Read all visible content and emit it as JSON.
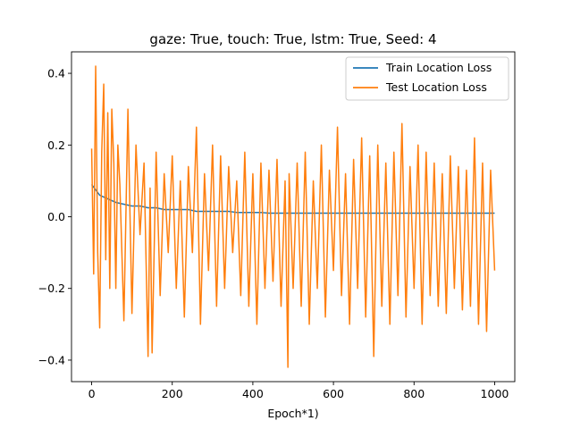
{
  "chart_data": {
    "type": "line",
    "title": "gaze: True, touch: True, lstm: True, Seed: 4",
    "xlabel": "Epoch*1)",
    "ylabel": "",
    "xlim": [
      -50,
      1050
    ],
    "ylim": [
      -0.46,
      0.46
    ],
    "xticks": [
      0,
      200,
      400,
      600,
      800,
      1000
    ],
    "yticks": [
      -0.4,
      -0.2,
      0.0,
      0.2,
      0.4
    ],
    "xtick_labels": [
      "0",
      "200",
      "400",
      "600",
      "800",
      "1000"
    ],
    "ytick_labels": [
      "−0.4",
      "−0.2",
      "0.0",
      "0.2",
      "0.4"
    ],
    "grid": false,
    "legend": {
      "placement": "upper-right",
      "entries": [
        {
          "label": "Train Location Loss",
          "color": "#1f77b4"
        },
        {
          "label": "Test Location Loss",
          "color": "#ff7f0e"
        }
      ]
    },
    "series": [
      {
        "name": "Train Location Loss",
        "color": "#1f77b4",
        "x": [
          0,
          20,
          40,
          60,
          80,
          100,
          120,
          140,
          160,
          180,
          200,
          220,
          240,
          260,
          280,
          300,
          320,
          340,
          360,
          380,
          400,
          420,
          440,
          460,
          480,
          500,
          520,
          540,
          560,
          580,
          600,
          620,
          640,
          660,
          680,
          700,
          720,
          740,
          760,
          780,
          800,
          820,
          840,
          860,
          880,
          900,
          920,
          940,
          960,
          980,
          1000
        ],
        "y": [
          0.09,
          0.06,
          0.05,
          0.04,
          0.035,
          0.03,
          0.03,
          0.025,
          0.025,
          0.02,
          0.02,
          0.02,
          0.02,
          0.015,
          0.015,
          0.015,
          0.015,
          0.015,
          0.012,
          0.012,
          0.012,
          0.012,
          0.01,
          0.01,
          0.01,
          0.01,
          0.01,
          0.01,
          0.01,
          0.01,
          0.01,
          0.01,
          0.01,
          0.01,
          0.01,
          0.01,
          0.01,
          0.01,
          0.01,
          0.01,
          0.01,
          0.01,
          0.01,
          0.01,
          0.01,
          0.01,
          0.01,
          0.01,
          0.01,
          0.01,
          0.01
        ]
      },
      {
        "name": "Test Location Loss",
        "color": "#ff7f0e",
        "x": [
          0,
          5,
          10,
          15,
          20,
          25,
          30,
          35,
          40,
          45,
          50,
          55,
          60,
          65,
          70,
          80,
          90,
          100,
          110,
          120,
          130,
          140,
          145,
          150,
          160,
          170,
          180,
          190,
          200,
          210,
          220,
          230,
          240,
          250,
          260,
          270,
          280,
          290,
          300,
          310,
          320,
          330,
          340,
          350,
          360,
          370,
          380,
          390,
          400,
          410,
          420,
          430,
          440,
          450,
          460,
          470,
          480,
          487,
          490,
          500,
          510,
          520,
          530,
          540,
          550,
          560,
          570,
          580,
          590,
          600,
          610,
          620,
          630,
          640,
          650,
          660,
          670,
          680,
          690,
          700,
          710,
          720,
          730,
          740,
          750,
          760,
          770,
          780,
          790,
          800,
          810,
          820,
          830,
          840,
          850,
          860,
          870,
          880,
          890,
          900,
          910,
          920,
          930,
          940,
          950,
          960,
          970,
          980,
          990,
          1000
        ],
        "y": [
          0.19,
          -0.16,
          0.42,
          -0.1,
          -0.31,
          0.18,
          0.37,
          -0.12,
          0.29,
          -0.2,
          0.3,
          0.15,
          -0.2,
          0.2,
          0.09,
          -0.29,
          0.3,
          -0.27,
          0.2,
          -0.05,
          0.15,
          -0.39,
          0.08,
          -0.38,
          0.18,
          -0.22,
          0.12,
          -0.1,
          0.17,
          -0.2,
          0.1,
          -0.28,
          0.14,
          -0.1,
          0.25,
          -0.3,
          0.12,
          -0.15,
          0.2,
          -0.25,
          0.17,
          -0.2,
          0.14,
          -0.1,
          0.1,
          -0.22,
          0.18,
          -0.25,
          0.12,
          -0.3,
          0.15,
          -0.2,
          0.13,
          -0.18,
          0.16,
          -0.25,
          0.1,
          -0.42,
          0.12,
          -0.2,
          0.15,
          -0.25,
          0.18,
          -0.3,
          0.1,
          -0.2,
          0.2,
          -0.28,
          0.13,
          -0.15,
          0.25,
          -0.22,
          0.12,
          -0.3,
          0.16,
          -0.2,
          0.22,
          -0.28,
          0.17,
          -0.39,
          0.2,
          -0.25,
          0.15,
          -0.3,
          0.18,
          -0.22,
          0.26,
          -0.28,
          0.14,
          -0.2,
          0.2,
          -0.3,
          0.18,
          -0.22,
          0.15,
          -0.25,
          0.12,
          -0.27,
          0.17,
          -0.2,
          0.14,
          -0.26,
          0.13,
          -0.25,
          0.22,
          -0.3,
          0.15,
          -0.32,
          0.13,
          -0.15
        ]
      }
    ]
  }
}
